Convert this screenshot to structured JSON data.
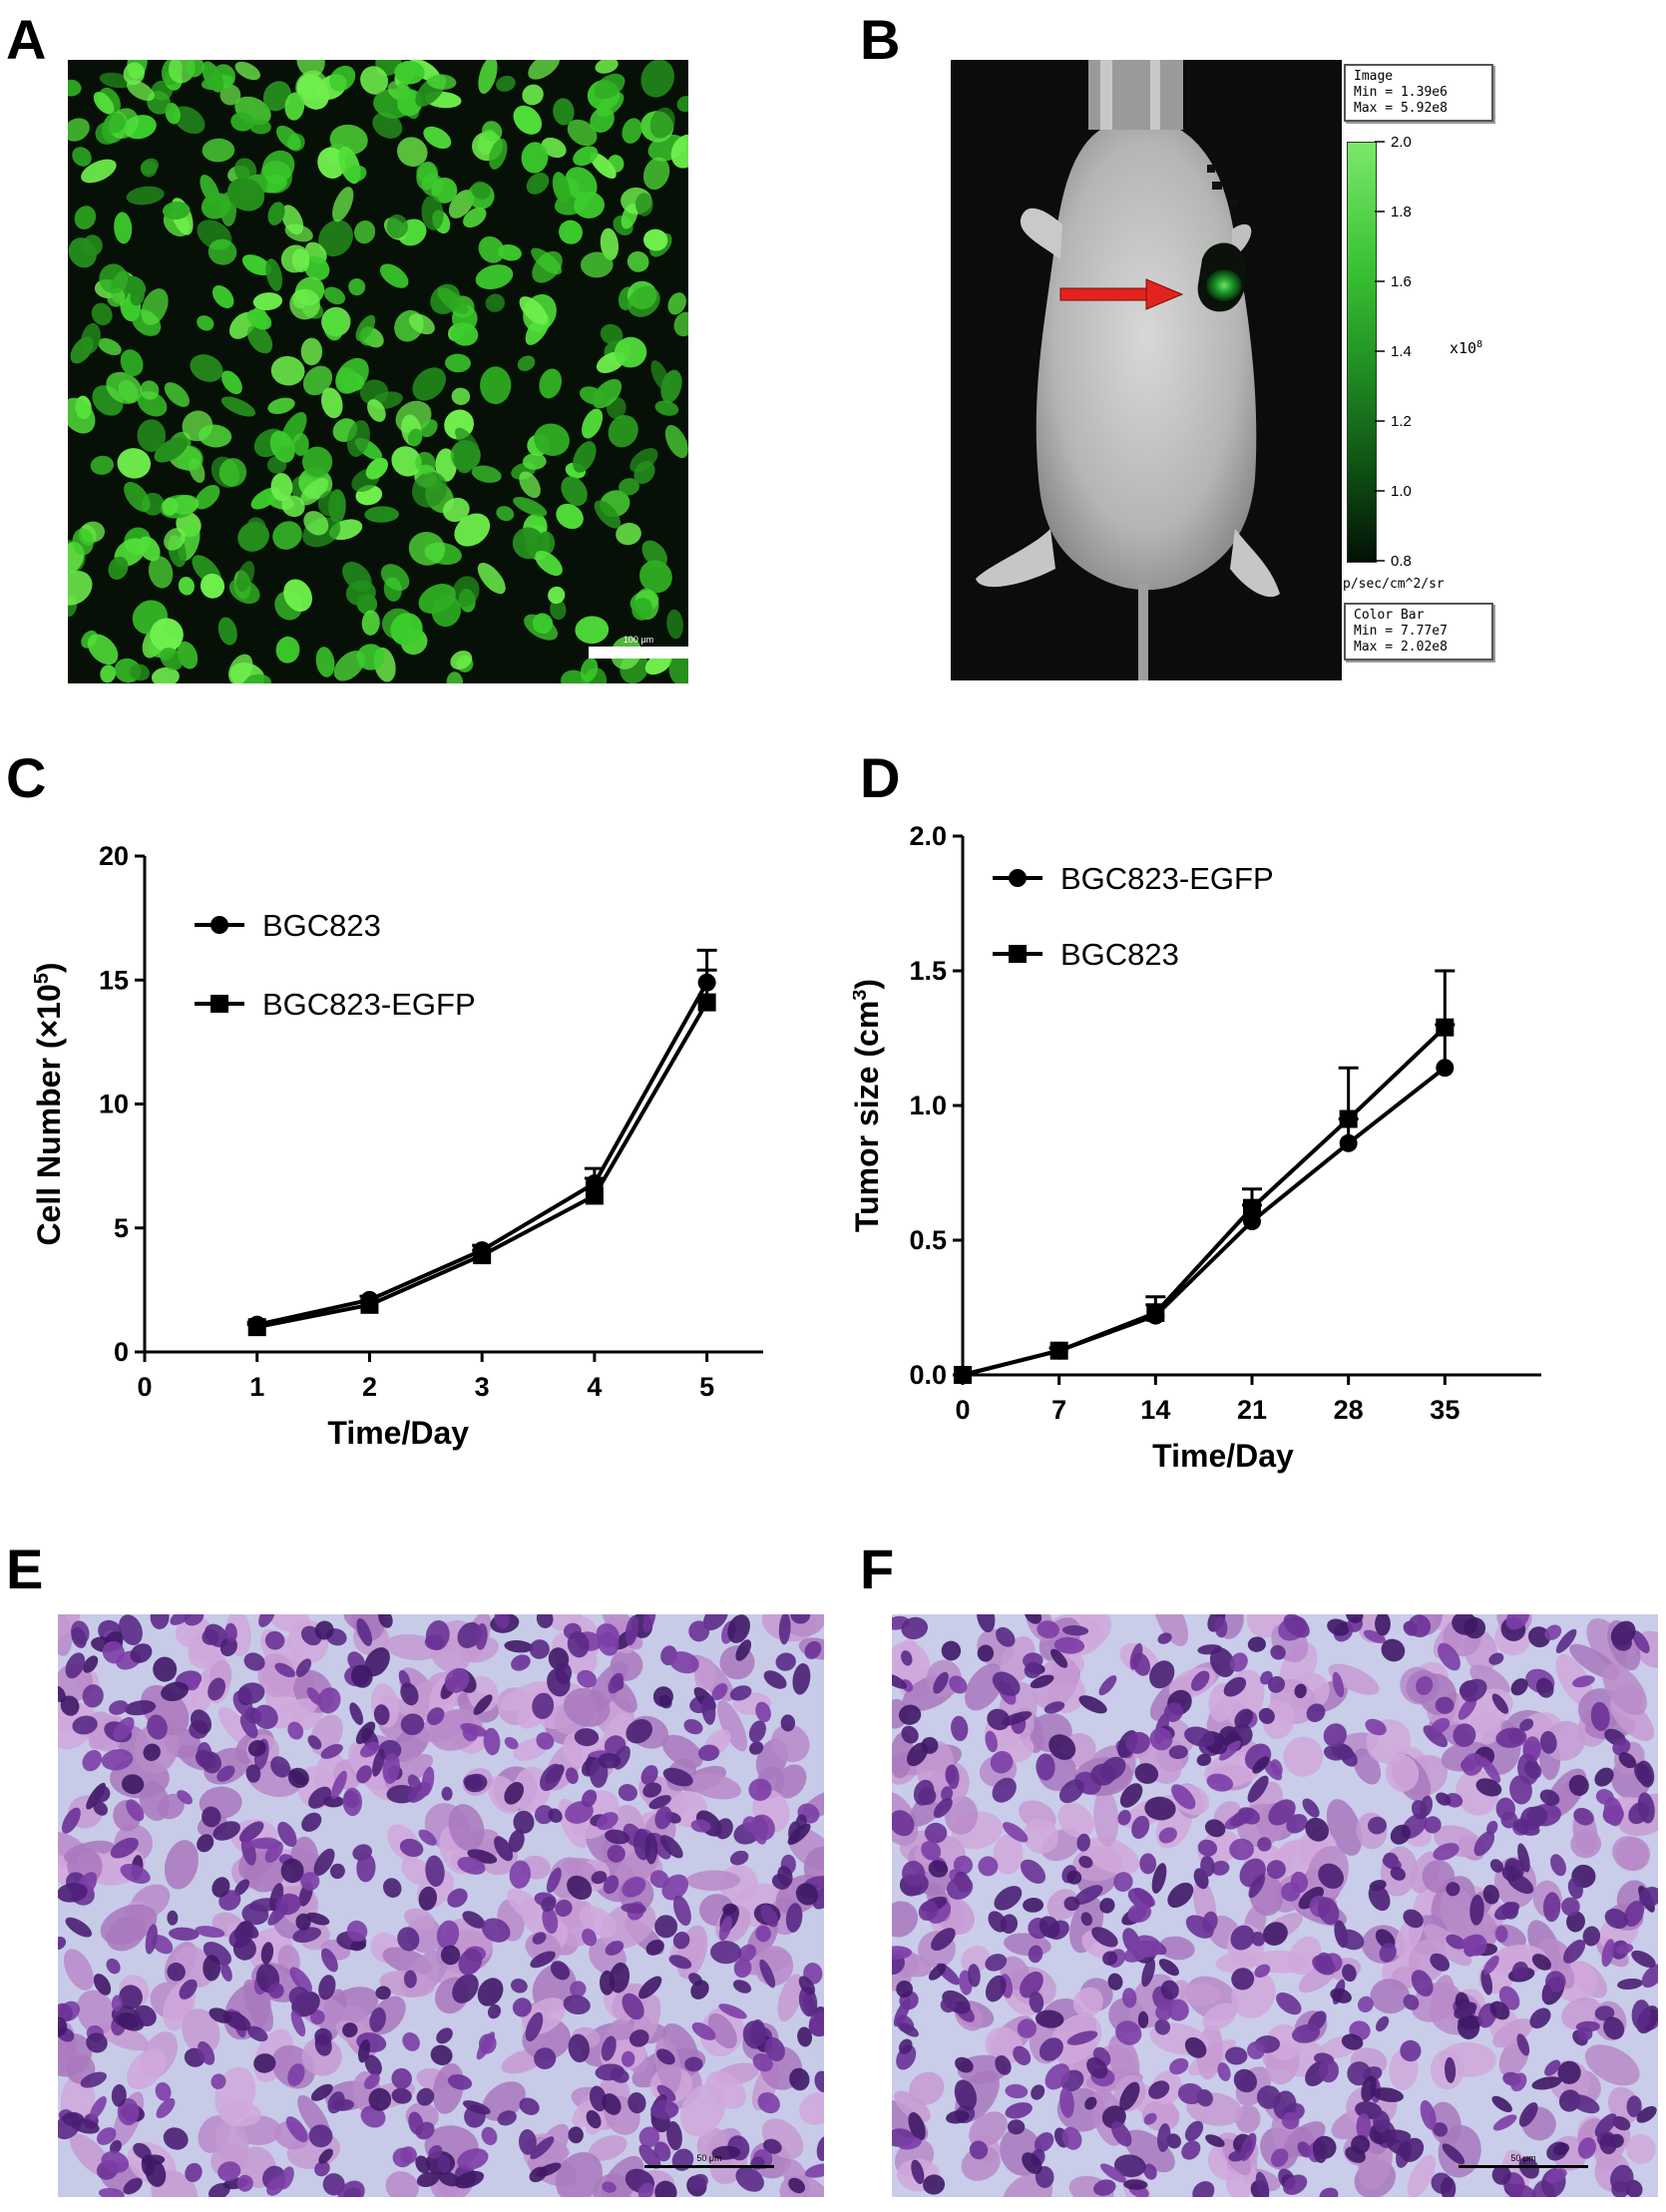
{
  "figure": {
    "panel_labels": [
      "A",
      "B",
      "C",
      "D",
      "E",
      "F"
    ],
    "colors": {
      "fluor_green": "#39d22b",
      "he_purple": "#7a3a9c",
      "he_bg": "#c9cdea",
      "arrow_red": "#e3231d",
      "line": "#000000"
    }
  },
  "panel_a": {
    "scalebar_label": "100 μm"
  },
  "panel_b": {
    "image_box": {
      "title": "Image",
      "min_label": "Min = 1.39e6",
      "max_label": "Max = 5.92e8"
    },
    "colorbar": {
      "ticks": [
        "2.0",
        "1.8",
        "1.6",
        "1.4",
        "1.2",
        "1.0",
        "0.8"
      ],
      "multiplier": "x10",
      "exponent": "8",
      "unit": "p/sec/cm^2/sr"
    },
    "color_box": {
      "title": "Color Bar",
      "min_label": "Min = 7.77e7",
      "max_label": "Max = 2.02e8"
    }
  },
  "chart_data": [
    {
      "panel": "C",
      "type": "line",
      "xlabel": "Time/Day",
      "ylabel_prefix": "Cell Number (",
      "ylabel_mult": "×10",
      "ylabel_exp": "5",
      "ylabel_suffix": ")",
      "xlim": [
        0,
        5.5
      ],
      "ylim": [
        0,
        20
      ],
      "xticks": [
        0,
        1,
        2,
        3,
        4,
        5
      ],
      "yticks": [
        0,
        5,
        10,
        15,
        20
      ],
      "legend_position": "top-left",
      "series": [
        {
          "name": "BGC823",
          "marker": "circle",
          "x": [
            1,
            2,
            3,
            4,
            5
          ],
          "y": [
            1.1,
            2.1,
            4.1,
            6.8,
            14.9
          ],
          "err": [
            0.1,
            0.15,
            0.2,
            0.6,
            1.3
          ]
        },
        {
          "name": "BGC823-EGFP",
          "marker": "square",
          "x": [
            1,
            2,
            3,
            4,
            5
          ],
          "y": [
            1.0,
            1.9,
            3.9,
            6.3,
            14.1
          ],
          "err": [
            0.1,
            0.15,
            0.2,
            0.7,
            1.3
          ]
        }
      ]
    },
    {
      "panel": "D",
      "type": "line",
      "xlabel": "Time/Day",
      "ylabel_prefix": "Tumor size (cm",
      "ylabel_exp": "3",
      "ylabel_suffix": ")",
      "xlim": [
        0,
        42
      ],
      "ylim": [
        0,
        2.0
      ],
      "xticks": [
        0,
        7,
        14,
        21,
        28,
        35
      ],
      "yticks": [
        "0.0",
        "0.5",
        "1.0",
        "1.5",
        "2.0"
      ],
      "legend_position": "top-left",
      "series": [
        {
          "name": "BGC823-EGFP",
          "marker": "circle",
          "x": [
            0,
            7,
            14,
            21,
            28,
            35
          ],
          "y": [
            0.0,
            0.09,
            0.22,
            0.57,
            0.86,
            1.14
          ],
          "err": [
            0,
            0.01,
            0.04,
            0.06,
            0.09,
            0.16
          ]
        },
        {
          "name": "BGC823",
          "marker": "square",
          "x": [
            0,
            7,
            14,
            21,
            28,
            35
          ],
          "y": [
            0.0,
            0.09,
            0.23,
            0.62,
            0.95,
            1.29
          ],
          "err": [
            0,
            0.01,
            0.06,
            0.07,
            0.19,
            0.21
          ]
        }
      ]
    }
  ],
  "panel_e": {
    "scalebar_label": "50 μm"
  },
  "panel_f": {
    "scalebar_label": "50 μm"
  }
}
